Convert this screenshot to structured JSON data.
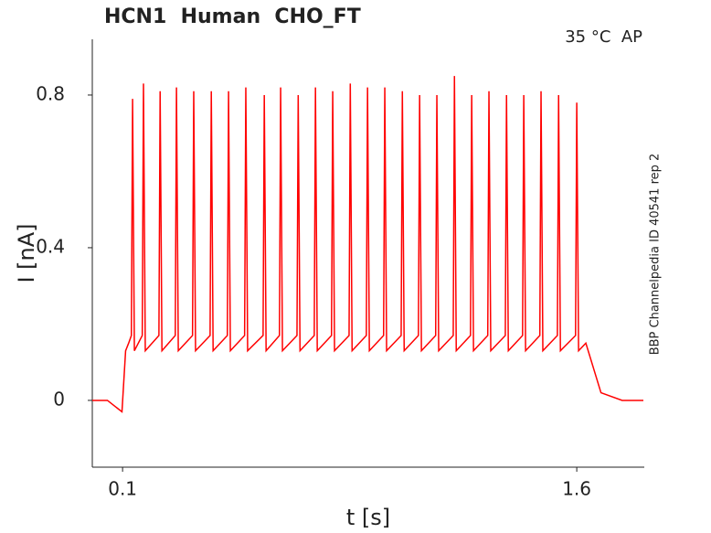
{
  "chart_data": {
    "type": "line",
    "title": "HCN1  Human  CHO_FT",
    "annotation": "35 °C  AP",
    "side_note": "BBP Channelpedia ID 40541 rep 2",
    "x_label": "t [s]",
    "y_label": "I [nA]",
    "xlim": [
      0,
      1.823
    ],
    "ylim": [
      -0.175,
      0.946
    ],
    "xticks": [
      0.1,
      1.6
    ],
    "yticks": [
      0,
      0.4,
      0.8
    ],
    "series": [
      {
        "color": "#ff0000",
        "x": [
          0,
          0.05,
          0.098,
          0.11,
          0.12,
          0.129,
          0.133,
          0.139,
          0.165,
          0.169,
          0.175,
          0.22,
          0.224,
          0.23,
          0.274,
          0.278,
          0.284,
          0.331,
          0.335,
          0.341,
          0.389,
          0.393,
          0.399,
          0.446,
          0.45,
          0.456,
          0.503,
          0.507,
          0.513,
          0.564,
          0.568,
          0.574,
          0.618,
          0.622,
          0.628,
          0.676,
          0.68,
          0.686,
          0.733,
          0.737,
          0.743,
          0.79,
          0.794,
          0.8,
          0.848,
          0.852,
          0.858,
          0.905,
          0.909,
          0.915,
          0.962,
          0.966,
          0.972,
          1.02,
          1.024,
          1.03,
          1.077,
          1.081,
          1.087,
          1.134,
          1.138,
          1.144,
          1.192,
          1.196,
          1.202,
          1.249,
          1.253,
          1.259,
          1.306,
          1.31,
          1.316,
          1.364,
          1.368,
          1.374,
          1.421,
          1.425,
          1.431,
          1.478,
          1.482,
          1.488,
          1.536,
          1.54,
          1.546,
          1.596,
          1.6,
          1.606,
          1.63,
          1.68,
          1.75,
          1.82
        ],
        "values": [
          0.0,
          0.0,
          -0.03,
          0.13,
          0.15,
          0.17,
          0.79,
          0.13,
          0.17,
          0.83,
          0.13,
          0.17,
          0.81,
          0.13,
          0.17,
          0.82,
          0.13,
          0.17,
          0.81,
          0.13,
          0.17,
          0.81,
          0.13,
          0.17,
          0.81,
          0.13,
          0.17,
          0.82,
          0.13,
          0.17,
          0.8,
          0.13,
          0.17,
          0.82,
          0.13,
          0.17,
          0.8,
          0.13,
          0.17,
          0.82,
          0.13,
          0.17,
          0.81,
          0.13,
          0.17,
          0.83,
          0.13,
          0.17,
          0.82,
          0.13,
          0.17,
          0.82,
          0.13,
          0.17,
          0.81,
          0.13,
          0.17,
          0.8,
          0.13,
          0.17,
          0.8,
          0.13,
          0.17,
          0.85,
          0.13,
          0.17,
          0.8,
          0.13,
          0.17,
          0.81,
          0.13,
          0.17,
          0.8,
          0.13,
          0.17,
          0.8,
          0.13,
          0.17,
          0.81,
          0.13,
          0.17,
          0.8,
          0.13,
          0.17,
          0.78,
          0.13,
          0.15,
          0.02,
          0.0,
          0.0
        ]
      }
    ]
  }
}
